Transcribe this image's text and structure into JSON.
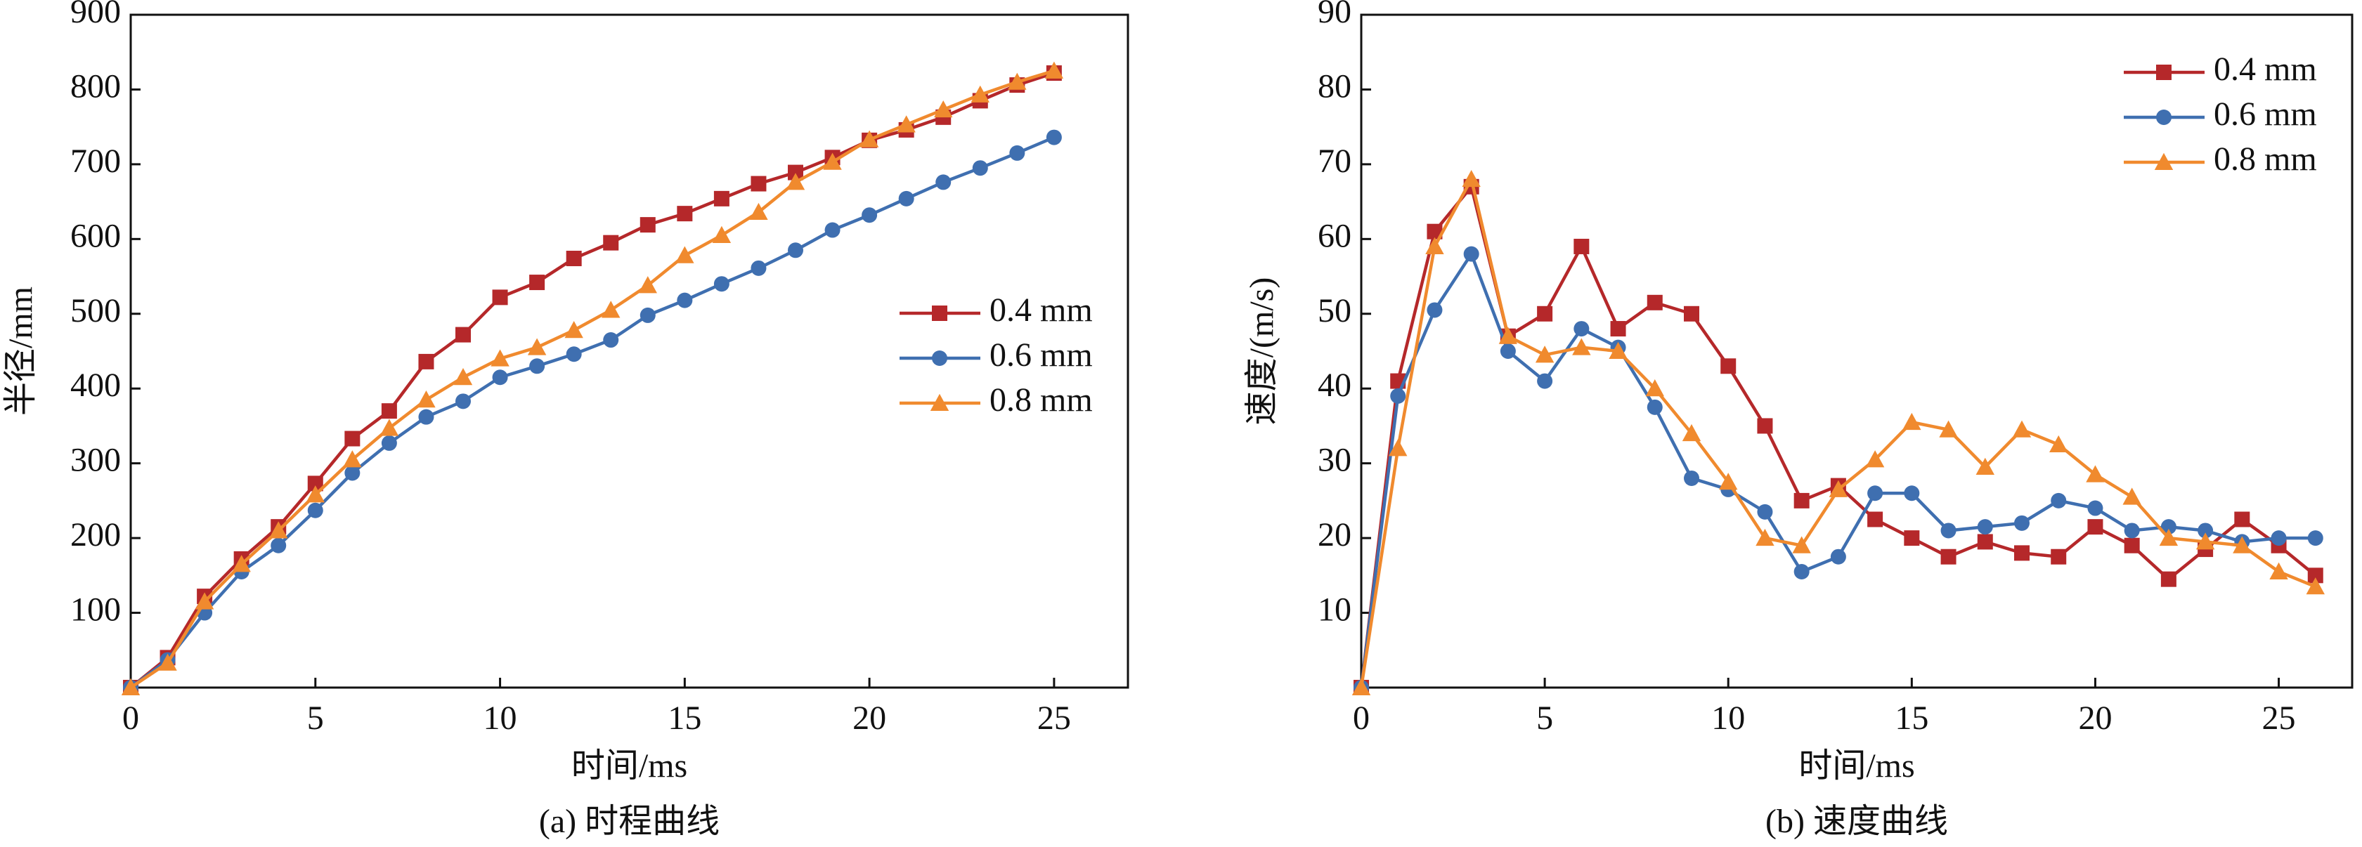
{
  "chart_data": [
    {
      "type": "line",
      "title": "(a) 时程曲线",
      "xlabel": "时间/ms",
      "ylabel": "半径/mm",
      "x": [
        0,
        1,
        2,
        3,
        4,
        5,
        6,
        7,
        8,
        9,
        10,
        11,
        12,
        13,
        14,
        15,
        16,
        17,
        18,
        19,
        20,
        21,
        22,
        23,
        24,
        25
      ],
      "series": [
        {
          "name": "0.4 mm",
          "color": "#b5282a",
          "marker": "square",
          "values": [
            0,
            40,
            122,
            172,
            215,
            273,
            333,
            370,
            436,
            472,
            522,
            542,
            574,
            595,
            619,
            634,
            654,
            674,
            689,
            709,
            732,
            746,
            763,
            785,
            806,
            822
          ]
        },
        {
          "name": "0.6 mm",
          "color": "#3f6fb0",
          "marker": "circle",
          "values": [
            0,
            37,
            100,
            155,
            190,
            237,
            287,
            327,
            362,
            383,
            415,
            430,
            446,
            465,
            498,
            518,
            540,
            561,
            585,
            612,
            632,
            654,
            676,
            695,
            715,
            736
          ]
        },
        {
          "name": "0.8 mm",
          "color": "#f08a2e",
          "marker": "triangle",
          "values": [
            0,
            33,
            115,
            165,
            210,
            258,
            305,
            347,
            385,
            415,
            440,
            455,
            478,
            505,
            538,
            578,
            605,
            636,
            676,
            703,
            733,
            753,
            773,
            793,
            810,
            825
          ]
        }
      ],
      "xlim": [
        0,
        27
      ],
      "ylim": [
        0,
        900
      ],
      "xticks": [
        0,
        5,
        10,
        15,
        20,
        25
      ],
      "yticks": [
        100,
        200,
        300,
        400,
        500,
        600,
        700,
        800,
        900
      ],
      "legend": "center right"
    },
    {
      "type": "line",
      "title": "(b) 速度曲线",
      "xlabel": "时间/ms",
      "ylabel": "速度/(m/s)",
      "x": [
        0,
        1,
        2,
        3,
        4,
        5,
        6,
        7,
        8,
        9,
        10,
        11,
        12,
        13,
        14,
        15,
        16,
        17,
        18,
        19,
        20,
        21,
        22,
        23,
        24,
        25,
        26
      ],
      "series": [
        {
          "name": "0.4 mm",
          "color": "#b5282a",
          "marker": "square",
          "values": [
            0,
            41,
            61,
            67,
            47,
            50,
            59,
            48,
            51.5,
            50,
            43,
            35,
            25,
            27,
            22.5,
            20,
            17.5,
            19.5,
            18,
            17.5,
            21.5,
            19,
            14.5,
            18.5,
            22.5,
            19,
            15
          ]
        },
        {
          "name": "0.6 mm",
          "color": "#3f6fb0",
          "marker": "circle",
          "values": [
            0,
            39,
            50.5,
            58,
            45,
            41,
            48,
            45.5,
            37.5,
            28,
            26.5,
            23.5,
            15.5,
            17.5,
            26,
            26,
            21,
            21.5,
            22,
            25,
            24,
            21,
            21.5,
            21,
            19.5,
            20,
            20
          ]
        },
        {
          "name": "0.8 mm",
          "color": "#f08a2e",
          "marker": "triangle",
          "values": [
            0,
            32,
            59,
            68,
            47,
            44.5,
            45.5,
            45,
            40,
            34,
            27.5,
            20,
            19,
            26.5,
            30.5,
            35.5,
            34.5,
            29.5,
            34.5,
            32.5,
            28.5,
            25.5,
            20,
            19.5,
            19,
            15.5,
            13.5
          ]
        }
      ],
      "xlim": [
        0,
        27
      ],
      "ylim": [
        0,
        90
      ],
      "xticks": [
        0,
        5,
        10,
        15,
        20,
        25
      ],
      "yticks": [
        10,
        20,
        30,
        40,
        50,
        60,
        70,
        80,
        90
      ],
      "legend": "upper right"
    }
  ]
}
